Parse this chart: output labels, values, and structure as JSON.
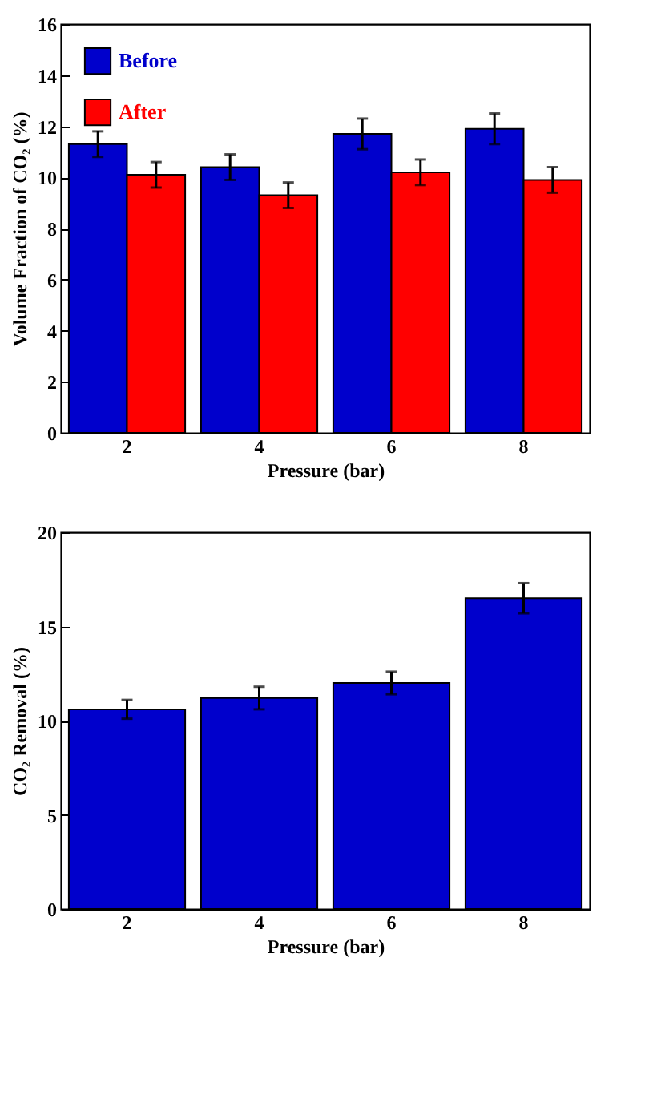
{
  "chart_data": [
    {
      "type": "bar",
      "xlabel": "Pressure (bar)",
      "ylabel": "Volume Fraction of CO₂ (%)",
      "categories": [
        "2",
        "4",
        "6",
        "8"
      ],
      "series": [
        {
          "name": "Before",
          "color": "#0000cc",
          "values": [
            11.3,
            10.4,
            11.7,
            11.9
          ],
          "errors": [
            0.5,
            0.5,
            0.6,
            0.6
          ]
        },
        {
          "name": "After",
          "color": "#ff0000",
          "values": [
            10.1,
            9.3,
            10.2,
            9.9
          ],
          "errors": [
            0.5,
            0.5,
            0.5,
            0.5
          ]
        }
      ],
      "ylim": [
        0,
        16
      ],
      "yticks": [
        0,
        2,
        4,
        6,
        8,
        10,
        12,
        14,
        16
      ],
      "grid": false,
      "legend": "top left"
    },
    {
      "type": "bar",
      "xlabel": "Pressure (bar)",
      "ylabel": "CO₂ Removal (%)",
      "categories": [
        "2",
        "4",
        "6",
        "8"
      ],
      "values": [
        10.6,
        11.2,
        12.0,
        16.5
      ],
      "errors": [
        0.5,
        0.6,
        0.6,
        0.8
      ],
      "color": "#0000cc",
      "ylim": [
        0,
        20
      ],
      "yticks": [
        0,
        5,
        10,
        15,
        20
      ],
      "grid": false
    }
  ]
}
